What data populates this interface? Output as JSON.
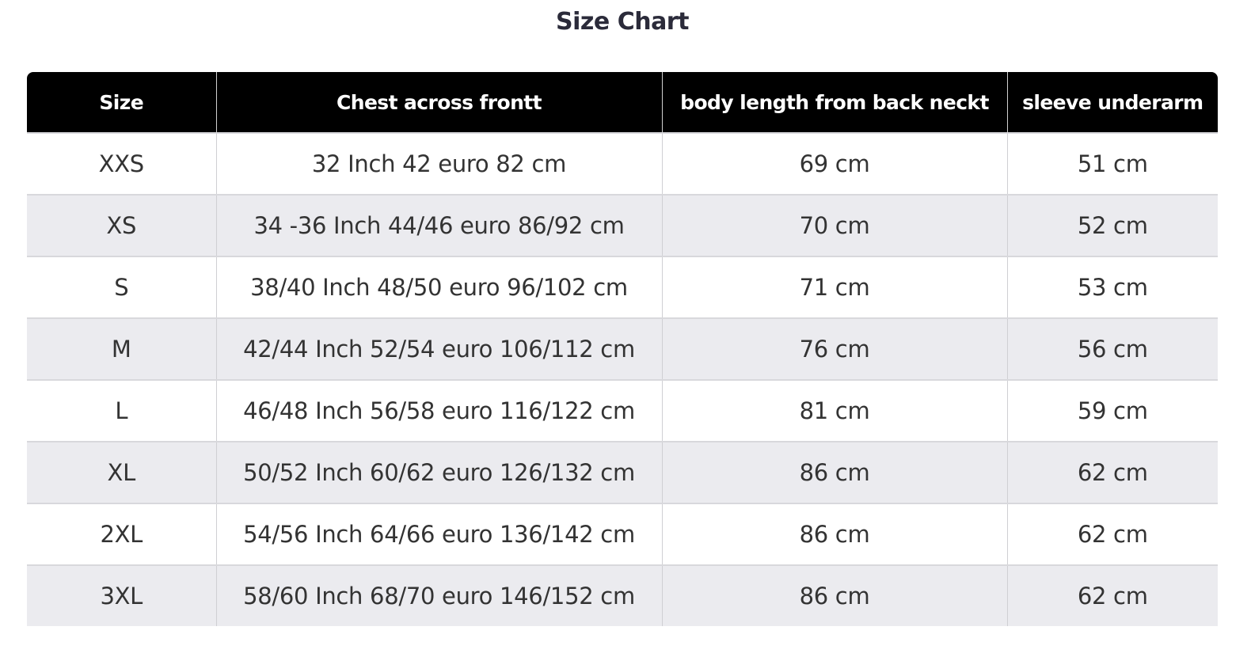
{
  "title": "Size Chart",
  "table": {
    "headers": [
      "Size",
      "Chest across frontt",
      "body length from back neckt",
      "sleeve underarm"
    ],
    "rows": [
      [
        "XXS",
        "32 Inch 42 euro 82 cm",
        "69 cm",
        "51 cm"
      ],
      [
        "XS",
        "34 -36 Inch 44/46 euro 86/92 cm",
        "70 cm",
        "52 cm"
      ],
      [
        "S",
        "38/40 Inch 48/50 euro 96/102 cm",
        "71 cm",
        "53 cm"
      ],
      [
        "M",
        "42/44 Inch 52/54 euro 106/112 cm",
        "76 cm",
        "56 cm"
      ],
      [
        "L",
        "46/48 Inch 56/58 euro 116/122 cm",
        "81 cm",
        "59 cm"
      ],
      [
        "XL",
        "50/52 Inch 60/62 euro 126/132 cm",
        "86 cm",
        "62 cm"
      ],
      [
        "2XL",
        "54/56 Inch 64/66 euro 136/142 cm",
        "86 cm",
        "62 cm"
      ],
      [
        "3XL",
        "58/60 Inch 68/70 euro 146/152 cm",
        "86 cm",
        "62 cm"
      ]
    ]
  },
  "colors": {
    "header_bg": "#000000",
    "header_text": "#ffffff",
    "alt_row": "#ebebef",
    "title": "#2b2b3a"
  }
}
